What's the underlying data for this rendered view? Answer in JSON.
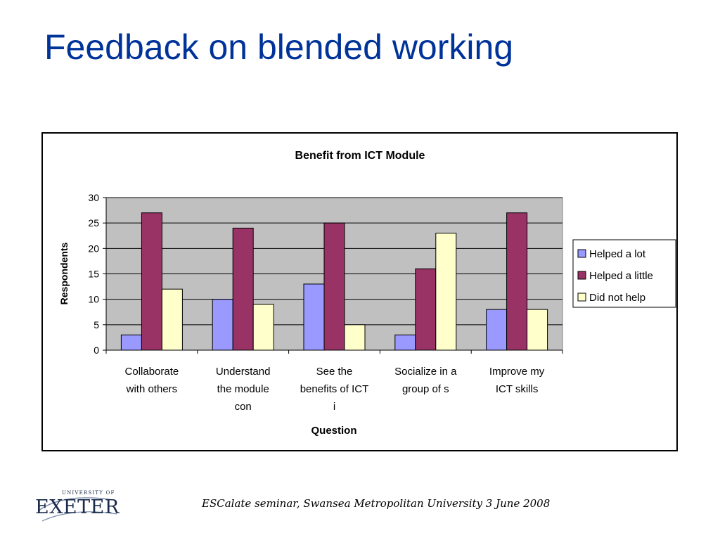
{
  "slide": {
    "title": "Feedback on blended working",
    "footer": "ESCalate seminar, Swansea Metropolitan University   3 June 2008",
    "logo_small": "UNIVERSITY OF",
    "logo_big": "EXETER"
  },
  "chart_data": {
    "type": "bar",
    "title": "Benefit from ICT Module",
    "xlabel": "Question",
    "ylabel": "Respondents",
    "categories": [
      [
        "Collaborate",
        "with others"
      ],
      [
        "Understand",
        "the module",
        "con"
      ],
      [
        "See the",
        "benefits of ICT",
        "i"
      ],
      [
        "Socialize in a",
        "group of s"
      ],
      [
        "Improve my",
        "ICT skills"
      ]
    ],
    "series": [
      {
        "name": "Helped a lot",
        "color": "#9999ff",
        "values": [
          3,
          10,
          13,
          3,
          8
        ]
      },
      {
        "name": "Helped a little",
        "color": "#993366",
        "values": [
          27,
          24,
          25,
          16,
          27
        ]
      },
      {
        "name": "Did not help",
        "color": "#ffffcc",
        "values": [
          12,
          9,
          5,
          23,
          8
        ]
      }
    ],
    "ylim": [
      0,
      30
    ],
    "yticks": [
      0,
      5,
      10,
      15,
      20,
      25,
      30
    ],
    "grid": true,
    "legend_position": "right",
    "plot_background": "#c0c0c0"
  }
}
